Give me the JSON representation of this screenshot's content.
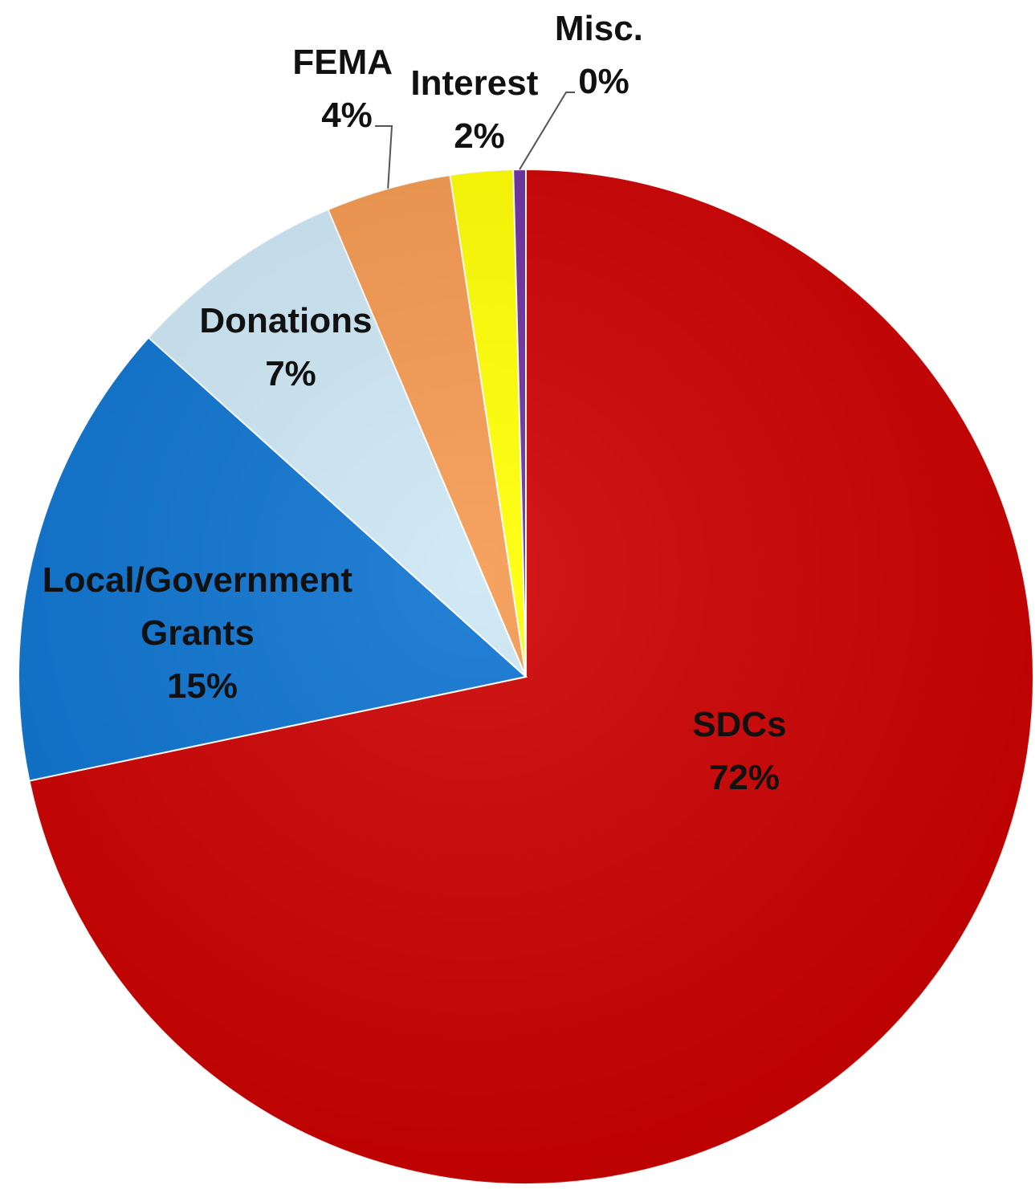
{
  "chart_data": {
    "type": "pie",
    "slices": [
      {
        "name": "SDCs",
        "value": 72,
        "label": "72%",
        "color": "#cc0000"
      },
      {
        "name": "Local/Government Grants",
        "value": 15,
        "label": "15%",
        "color": "#0c73d0"
      },
      {
        "name": "Donations",
        "value": 7,
        "label": "7%",
        "color": "#cce7f4"
      },
      {
        "name": "FEMA",
        "value": 4,
        "label": "4%",
        "color": "#f5984f"
      },
      {
        "name": "Interest",
        "value": 2,
        "label": "2%",
        "color": "#ffff00"
      },
      {
        "name": "Misc.",
        "value": 0,
        "label": "0%",
        "color": "#6a2fa0"
      }
    ],
    "start_angle_deg": 0,
    "direction": "clockwise",
    "label_text": {
      "sdcs": [
        "SDCs",
        "72%"
      ],
      "grants": [
        "Local/Government",
        "Grants",
        "15%"
      ],
      "donations": [
        "Donations",
        "7%"
      ],
      "fema": [
        "FEMA",
        "4%"
      ],
      "interest": [
        "Interest",
        "2%"
      ],
      "misc": [
        "Misc.",
        "0%"
      ]
    }
  }
}
